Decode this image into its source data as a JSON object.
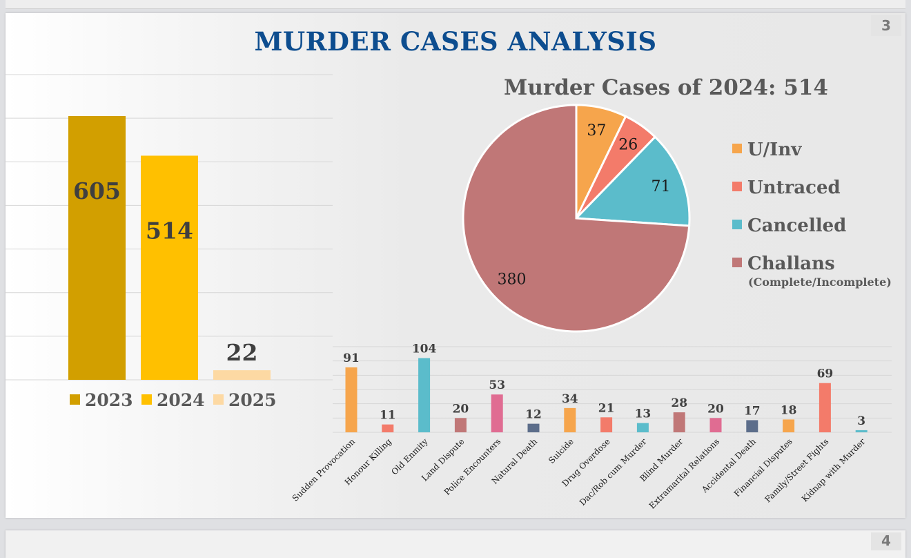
{
  "slide": {
    "title": "MURDER CASES ANALYSIS",
    "number": "3",
    "next_number": "4"
  },
  "chart_data": [
    {
      "type": "bar",
      "categories": [
        "2023",
        "2024",
        "2025"
      ],
      "values": [
        605,
        514,
        22
      ],
      "colors": [
        "#d29f00",
        "#ffc000",
        "#fdd9a3"
      ],
      "legend": [
        "2023",
        "2024",
        "2025"
      ],
      "legend_position": "bottom",
      "ylim": [
        0,
        700
      ],
      "grid": true
    },
    {
      "type": "pie",
      "title": "Murder Cases of 2024: 514",
      "slices": [
        {
          "label": "U/Inv",
          "value": 37,
          "color": "#f6a54c"
        },
        {
          "label": "Untraced",
          "value": 26,
          "color": "#f37b6a"
        },
        {
          "label": "Cancelled",
          "value": 71,
          "color": "#5bbccb"
        },
        {
          "label": "Challans",
          "sublabel": "(Complete/Incomplete)",
          "value": 380,
          "color": "#c07777"
        }
      ],
      "legend_position": "right"
    },
    {
      "type": "bar",
      "categories": [
        "Sudden Provocation",
        "Honour Killing",
        "Old Enmity",
        "Land Dispute",
        "Police Encounters",
        "Natural Death",
        "Suicide",
        "Drug Overdose",
        "Dac/Rob cum Murder",
        "Blind Murder",
        "Extramarital Relations",
        "Accidental Death",
        "Financial Disputes",
        "Family/Street Fights",
        "Kidnap with Murder"
      ],
      "values": [
        91,
        11,
        104,
        20,
        53,
        12,
        34,
        21,
        13,
        28,
        20,
        17,
        18,
        69,
        3
      ],
      "colors": [
        "#f6a54c",
        "#f37b6a",
        "#5bbccb",
        "#c07777",
        "#e06c92",
        "#5c6d8a",
        "#f6a54c",
        "#f37b6a",
        "#5bbccb",
        "#c07777",
        "#e06c92",
        "#5c6d8a",
        "#f6a54c",
        "#f37b6a",
        "#5bbccb"
      ],
      "ylim": [
        0,
        120
      ],
      "grid": true
    }
  ]
}
